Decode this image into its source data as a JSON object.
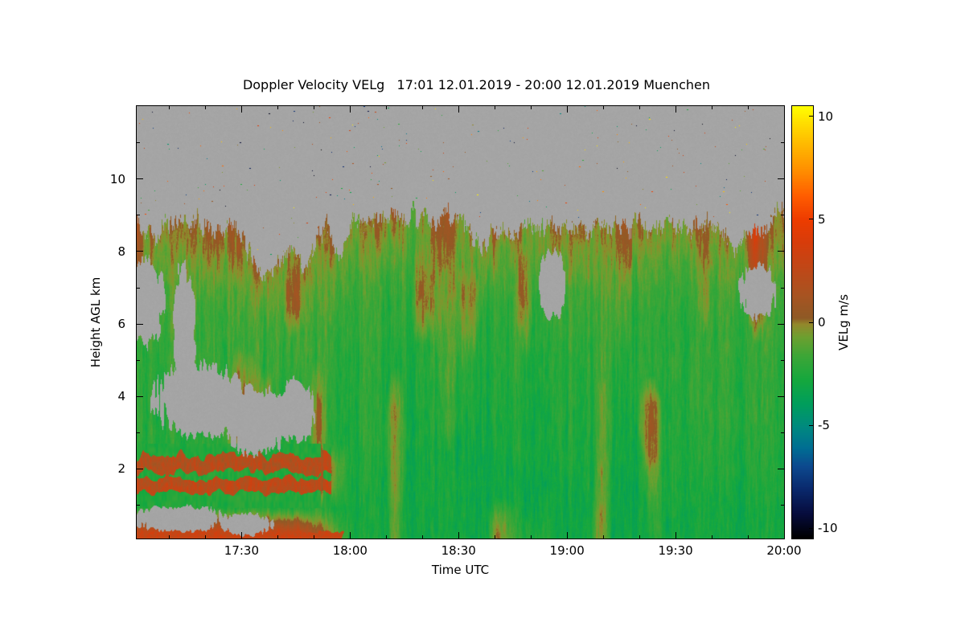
{
  "page": {
    "background": "#ffffff"
  },
  "header": {
    "title": "Doppler Velocity VELg   17:01 12.01.2019 - 20:00 12.01.2019 Muenchen"
  },
  "axes": {
    "x_label": "Time UTC",
    "y_label": "Height AGL km",
    "colorbar_label": "VELg m/s"
  },
  "chart_data": {
    "type": "heatmap",
    "title": "Doppler Velocity VELg   17:01 12.01.2019 - 20:00 12.01.2019 Muenchen",
    "product": "Doppler Velocity VELg",
    "site": "Muenchen",
    "time_start_utc": "17:01 12.01.2019",
    "time_end_utc": "20:00 12.01.2019",
    "xlabel": "Time UTC",
    "ylabel": "Height AGL km",
    "value_label": "VELg m/s",
    "x_range_minutes": [
      0,
      179
    ],
    "x_major_ticks": [
      {
        "t": 29,
        "label": "17:30"
      },
      {
        "t": 59,
        "label": "18:00"
      },
      {
        "t": 89,
        "label": "18:30"
      },
      {
        "t": 119,
        "label": "19:00"
      },
      {
        "t": 149,
        "label": "19:30"
      },
      {
        "t": 179,
        "label": "20:00"
      }
    ],
    "x_minor_step_minutes": 10,
    "x_minor_offset_minutes": 9,
    "y_range_km": [
      0.07,
      12.02
    ],
    "y_major_ticks": [
      {
        "h": 2,
        "label": "2"
      },
      {
        "h": 4,
        "label": "4"
      },
      {
        "h": 6,
        "label": "6"
      },
      {
        "h": 8,
        "label": "8"
      },
      {
        "h": 10,
        "label": "10"
      }
    ],
    "y_minor_ticks": [
      1,
      3,
      5,
      7,
      9,
      11
    ],
    "no_data_color": "#a5a5a5",
    "colorbar": {
      "range": [
        -10.5,
        10.5
      ],
      "ticks": [
        {
          "v": 10,
          "label": "10"
        },
        {
          "v": 5,
          "label": "5"
        },
        {
          "v": 0,
          "label": "0"
        },
        {
          "v": -5,
          "label": "-5"
        },
        {
          "v": -10,
          "label": "-10"
        }
      ],
      "stops": [
        [
          -10.5,
          "#000000"
        ],
        [
          -9.3,
          "#070d3e"
        ],
        [
          -8.1,
          "#0a2a6e"
        ],
        [
          -7.0,
          "#0d4a8f"
        ],
        [
          -6.1,
          "#006f93"
        ],
        [
          -5.1,
          "#008a80"
        ],
        [
          -4.0,
          "#009e5d"
        ],
        [
          -2.8,
          "#16a83e"
        ],
        [
          -1.6,
          "#3fa637"
        ],
        [
          -0.7,
          "#6fa030"
        ],
        [
          -0.1,
          "#93892c"
        ],
        [
          0.2,
          "#8f5a26"
        ],
        [
          1.3,
          "#a85422"
        ],
        [
          2.6,
          "#c04818"
        ],
        [
          4.0,
          "#da3c0a"
        ],
        [
          5.0,
          "#ee3c00"
        ],
        [
          6.1,
          "#ff5c00"
        ],
        [
          7.3,
          "#ff8c00"
        ],
        [
          8.6,
          "#ffb800"
        ],
        [
          9.7,
          "#ffdf00"
        ],
        [
          10.5,
          "#ffff00"
        ]
      ]
    },
    "grid": {
      "times_min": [
        0,
        15,
        30,
        45,
        60,
        75,
        90,
        105,
        120,
        135,
        150,
        165,
        180
      ],
      "heights_km": [
        0.2,
        0.9,
        1.5,
        2.1,
        2.7,
        3.5,
        4.5,
        5.5,
        6.5,
        7.5,
        8.5
      ],
      "velocity_ms": [
        [
          3.2,
          3.2,
          3.3,
          3.0,
          -2.8,
          -3.0,
          -3.0,
          -3.0,
          -3.0,
          -3.0,
          -3.0,
          -3.0,
          -2.8
        ],
        [
          -2.0,
          -2.2,
          -2.4,
          -2.4,
          -2.8,
          -3.0,
          -3.0,
          -3.0,
          -3.0,
          -3.0,
          -2.8,
          -3.0,
          -2.8
        ],
        [
          2.6,
          2.4,
          2.8,
          2.4,
          -2.8,
          -3.0,
          -3.0,
          -3.0,
          -2.8,
          -3.0,
          -2.6,
          -2.8,
          -2.6
        ],
        [
          2.2,
          2.0,
          2.4,
          2.8,
          -2.6,
          -2.9,
          -3.0,
          -2.9,
          -2.6,
          -2.8,
          -2.5,
          -2.6,
          -2.5
        ],
        [
          -2.2,
          -2.2,
          -2.3,
          -2.2,
          -2.5,
          -2.8,
          -2.9,
          -2.7,
          -2.5,
          -2.6,
          -2.4,
          -2.5,
          -2.4
        ],
        [
          -2.1,
          -2.2,
          -2.2,
          -2.1,
          -2.4,
          -2.7,
          -2.6,
          -2.6,
          -2.4,
          -2.5,
          -2.3,
          -2.2,
          -2.4
        ],
        [
          -2.0,
          -2.1,
          -2.0,
          -1.8,
          -2.3,
          -2.5,
          -2.5,
          -2.4,
          -2.2,
          -2.4,
          -2.1,
          -2.3,
          -2.1
        ],
        [
          -1.8,
          -1.9,
          -1.8,
          -1.5,
          -2.1,
          -2.4,
          -2.3,
          -2.2,
          -2.0,
          -2.1,
          -2.2,
          -2.0,
          -1.9
        ],
        [
          -1.5,
          -1.6,
          -1.5,
          -1.0,
          -1.8,
          -2.2,
          -2.0,
          -1.9,
          -1.6,
          -1.8,
          -2.0,
          -1.8,
          -1.6
        ],
        [
          -1.2,
          -1.0,
          -0.8,
          -0.6,
          -1.4,
          -1.8,
          -1.6,
          -1.4,
          -1.0,
          -1.2,
          -1.6,
          -1.4,
          -1.0
        ],
        [
          -0.8,
          -0.5,
          -0.4,
          -0.3,
          -1.0,
          -1.2,
          -1.0,
          -0.8,
          -0.6,
          -0.8,
          -1.0,
          -0.8,
          -0.5
        ]
      ]
    },
    "cloud_top_km": [
      8.5,
      8.65,
      8.5,
      8.55,
      8.85,
      8.95,
      8.85,
      8.6,
      8.55,
      8.75,
      8.7,
      8.55,
      8.9
    ],
    "cloud_top_dips": [
      {
        "t": 36,
        "w": 5,
        "depth": 1.2
      },
      {
        "t": 46,
        "w": 3.5,
        "depth": 1.0
      },
      {
        "t": 56,
        "w": 2.5,
        "depth": 0.8
      },
      {
        "t": 96,
        "w": 3,
        "depth": 0.7
      },
      {
        "t": 166,
        "w": 2,
        "depth": 0.5
      }
    ],
    "no_data_regions": [
      {
        "t": 3,
        "h": 6.6,
        "rt": 4.5,
        "rh": 1.15
      },
      {
        "t": 13,
        "h": 5.9,
        "rt": 3.2,
        "rh": 1.7
      },
      {
        "t": 17,
        "h": 3.9,
        "rt": 12,
        "rh": 1.0
      },
      {
        "t": 33,
        "h": 3.3,
        "rt": 9,
        "rh": 0.9
      },
      {
        "t": 44,
        "h": 3.6,
        "rt": 5,
        "rh": 0.85
      },
      {
        "t": 115,
        "h": 7.1,
        "rt": 4,
        "rh": 0.9
      },
      {
        "t": 172,
        "h": 6.9,
        "rt": 5,
        "rh": 0.75
      },
      {
        "t": 12,
        "h": 0.6,
        "rt": 13,
        "rh": 0.35
      },
      {
        "t": 30,
        "h": 0.45,
        "rt": 7,
        "rh": 0.3
      }
    ],
    "speckle_count": 230
  }
}
